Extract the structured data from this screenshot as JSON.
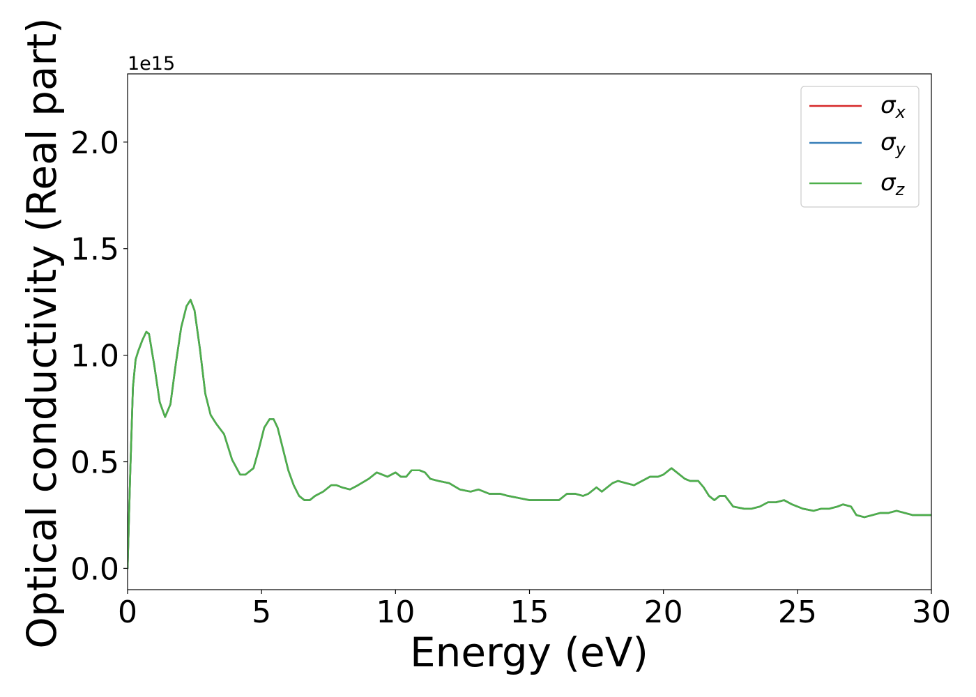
{
  "chart_data": {
    "type": "line",
    "title": "",
    "xlabel": "Energy (eV)",
    "ylabel": "Optical conductivity (Real part)",
    "y_offset_label": "1e15",
    "y_scale_factor": 1000000000000000.0,
    "xlim": [
      0,
      30
    ],
    "ylim": [
      -0.1,
      2.32
    ],
    "xticks": [
      0,
      5,
      10,
      15,
      20,
      25,
      30
    ],
    "xtick_labels": [
      "0",
      "5",
      "10",
      "15",
      "20",
      "25",
      "30"
    ],
    "yticks": [
      0.0,
      0.5,
      1.0,
      1.5,
      2.0
    ],
    "ytick_labels": [
      "0.0",
      "0.5",
      "1.0",
      "1.5",
      "2.0"
    ],
    "grid": false,
    "legend_position": "top-right",
    "series": [
      {
        "name": "σx",
        "symbol": "σ",
        "subscript": "x",
        "color": "#d62728",
        "x": [
          0,
          0.1,
          0.2,
          0.3,
          0.4,
          0.55,
          0.7,
          0.8,
          1.0,
          1.2,
          1.4,
          1.6,
          1.8,
          2.0,
          2.2,
          2.35,
          2.5,
          2.7,
          2.9,
          3.1,
          3.3,
          3.6,
          3.9,
          4.2,
          4.4,
          4.7,
          4.9,
          5.1,
          5.3,
          5.45,
          5.6,
          5.8,
          6.0,
          6.2,
          6.4,
          6.6,
          6.8,
          7.0,
          7.3,
          7.6,
          7.8,
          8.0,
          8.3,
          8.6,
          9.0,
          9.3,
          9.5,
          9.7,
          10.0,
          10.2,
          10.4,
          10.6,
          10.9,
          11.1,
          11.3,
          11.6,
          12.0,
          12.4,
          12.8,
          13.1,
          13.5,
          13.9,
          14.2,
          14.6,
          15.0,
          15.4,
          15.8,
          16.1,
          16.4,
          16.7,
          17.0,
          17.2,
          17.5,
          17.7,
          17.9,
          18.1,
          18.3,
          18.6,
          18.9,
          19.2,
          19.5,
          19.8,
          20.0,
          20.3,
          20.5,
          20.8,
          21.0,
          21.3,
          21.5,
          21.7,
          21.9,
          22.1,
          22.3,
          22.6,
          23.0,
          23.3,
          23.6,
          23.9,
          24.2,
          24.5,
          24.8,
          25.2,
          25.6,
          25.9,
          26.2,
          26.5,
          26.7,
          27.0,
          27.2,
          27.5,
          27.8,
          28.1,
          28.4,
          28.7,
          29.0,
          29.3,
          29.6,
          30.0
        ],
        "y": [
          0.0,
          0.45,
          0.85,
          0.98,
          1.02,
          1.07,
          1.11,
          1.1,
          0.95,
          0.78,
          0.71,
          0.77,
          0.96,
          1.13,
          1.23,
          1.26,
          1.21,
          1.03,
          0.82,
          0.72,
          0.68,
          0.63,
          0.51,
          0.44,
          0.44,
          0.47,
          0.56,
          0.66,
          0.7,
          0.7,
          0.66,
          0.56,
          0.46,
          0.39,
          0.34,
          0.32,
          0.32,
          0.34,
          0.36,
          0.39,
          0.39,
          0.38,
          0.37,
          0.39,
          0.42,
          0.45,
          0.44,
          0.43,
          0.45,
          0.43,
          0.43,
          0.46,
          0.46,
          0.45,
          0.42,
          0.41,
          0.4,
          0.37,
          0.36,
          0.37,
          0.35,
          0.35,
          0.34,
          0.33,
          0.32,
          0.32,
          0.32,
          0.32,
          0.35,
          0.35,
          0.34,
          0.35,
          0.38,
          0.36,
          0.38,
          0.4,
          0.41,
          0.4,
          0.39,
          0.41,
          0.43,
          0.43,
          0.44,
          0.47,
          0.45,
          0.42,
          0.41,
          0.41,
          0.38,
          0.34,
          0.32,
          0.34,
          0.34,
          0.29,
          0.28,
          0.28,
          0.29,
          0.31,
          0.31,
          0.32,
          0.3,
          0.28,
          0.27,
          0.28,
          0.28,
          0.29,
          0.3,
          0.29,
          0.25,
          0.24,
          0.25,
          0.26,
          0.26,
          0.27,
          0.26,
          0.25,
          0.25,
          0.25
        ]
      },
      {
        "name": "σy",
        "symbol": "σ",
        "subscript": "y",
        "color": "#377eb8",
        "x": [
          0,
          0.1,
          0.2,
          0.3,
          0.4,
          0.55,
          0.7,
          0.8,
          1.0,
          1.2,
          1.4,
          1.6,
          1.8,
          2.0,
          2.2,
          2.35,
          2.5,
          2.7,
          2.9,
          3.1,
          3.3,
          3.6,
          3.9,
          4.2,
          4.4,
          4.7,
          4.9,
          5.1,
          5.3,
          5.45,
          5.6,
          5.8,
          6.0,
          6.2,
          6.4,
          6.6,
          6.8,
          7.0,
          7.3,
          7.6,
          7.8,
          8.0,
          8.3,
          8.6,
          9.0,
          9.3,
          9.5,
          9.7,
          10.0,
          10.2,
          10.4,
          10.6,
          10.9,
          11.1,
          11.3,
          11.6,
          12.0,
          12.4,
          12.8,
          13.1,
          13.5,
          13.9,
          14.2,
          14.6,
          15.0,
          15.4,
          15.8,
          16.1,
          16.4,
          16.7,
          17.0,
          17.2,
          17.5,
          17.7,
          17.9,
          18.1,
          18.3,
          18.6,
          18.9,
          19.2,
          19.5,
          19.8,
          20.0,
          20.3,
          20.5,
          20.8,
          21.0,
          21.3,
          21.5,
          21.7,
          21.9,
          22.1,
          22.3,
          22.6,
          23.0,
          23.3,
          23.6,
          23.9,
          24.2,
          24.5,
          24.8,
          25.2,
          25.6,
          25.9,
          26.2,
          26.5,
          26.7,
          27.0,
          27.2,
          27.5,
          27.8,
          28.1,
          28.4,
          28.7,
          29.0,
          29.3,
          29.6,
          30.0
        ],
        "y": [
          0.0,
          0.45,
          0.85,
          0.98,
          1.02,
          1.07,
          1.11,
          1.1,
          0.95,
          0.78,
          0.71,
          0.77,
          0.96,
          1.13,
          1.23,
          1.26,
          1.21,
          1.03,
          0.82,
          0.72,
          0.68,
          0.63,
          0.51,
          0.44,
          0.44,
          0.47,
          0.56,
          0.66,
          0.7,
          0.7,
          0.66,
          0.56,
          0.46,
          0.39,
          0.34,
          0.32,
          0.32,
          0.34,
          0.36,
          0.39,
          0.39,
          0.38,
          0.37,
          0.39,
          0.42,
          0.45,
          0.44,
          0.43,
          0.45,
          0.43,
          0.43,
          0.46,
          0.46,
          0.45,
          0.42,
          0.41,
          0.4,
          0.37,
          0.36,
          0.37,
          0.35,
          0.35,
          0.34,
          0.33,
          0.32,
          0.32,
          0.32,
          0.32,
          0.35,
          0.35,
          0.34,
          0.35,
          0.38,
          0.36,
          0.38,
          0.4,
          0.41,
          0.4,
          0.39,
          0.41,
          0.43,
          0.43,
          0.44,
          0.47,
          0.45,
          0.42,
          0.41,
          0.41,
          0.38,
          0.34,
          0.32,
          0.34,
          0.34,
          0.29,
          0.28,
          0.28,
          0.29,
          0.31,
          0.31,
          0.32,
          0.3,
          0.28,
          0.27,
          0.28,
          0.28,
          0.29,
          0.3,
          0.29,
          0.25,
          0.24,
          0.25,
          0.26,
          0.26,
          0.27,
          0.26,
          0.25,
          0.25,
          0.25
        ]
      },
      {
        "name": "σz",
        "symbol": "σ",
        "subscript": "z",
        "color": "#4daf4a",
        "x": [
          0,
          0.1,
          0.2,
          0.3,
          0.4,
          0.55,
          0.7,
          0.8,
          1.0,
          1.2,
          1.4,
          1.6,
          1.8,
          2.0,
          2.2,
          2.35,
          2.5,
          2.7,
          2.9,
          3.1,
          3.3,
          3.6,
          3.9,
          4.2,
          4.4,
          4.7,
          4.9,
          5.1,
          5.3,
          5.45,
          5.6,
          5.8,
          6.0,
          6.2,
          6.4,
          6.6,
          6.8,
          7.0,
          7.3,
          7.6,
          7.8,
          8.0,
          8.3,
          8.6,
          9.0,
          9.3,
          9.5,
          9.7,
          10.0,
          10.2,
          10.4,
          10.6,
          10.9,
          11.1,
          11.3,
          11.6,
          12.0,
          12.4,
          12.8,
          13.1,
          13.5,
          13.9,
          14.2,
          14.6,
          15.0,
          15.4,
          15.8,
          16.1,
          16.4,
          16.7,
          17.0,
          17.2,
          17.5,
          17.7,
          17.9,
          18.1,
          18.3,
          18.6,
          18.9,
          19.2,
          19.5,
          19.8,
          20.0,
          20.3,
          20.5,
          20.8,
          21.0,
          21.3,
          21.5,
          21.7,
          21.9,
          22.1,
          22.3,
          22.6,
          23.0,
          23.3,
          23.6,
          23.9,
          24.2,
          24.5,
          24.8,
          25.2,
          25.6,
          25.9,
          26.2,
          26.5,
          26.7,
          27.0,
          27.2,
          27.5,
          27.8,
          28.1,
          28.4,
          28.7,
          29.0,
          29.3,
          29.6,
          30.0
        ],
        "y": [
          0.0,
          0.45,
          0.85,
          0.98,
          1.02,
          1.07,
          1.11,
          1.1,
          0.95,
          0.78,
          0.71,
          0.77,
          0.96,
          1.13,
          1.23,
          1.26,
          1.21,
          1.03,
          0.82,
          0.72,
          0.68,
          0.63,
          0.51,
          0.44,
          0.44,
          0.47,
          0.56,
          0.66,
          0.7,
          0.7,
          0.66,
          0.56,
          0.46,
          0.39,
          0.34,
          0.32,
          0.32,
          0.34,
          0.36,
          0.39,
          0.39,
          0.38,
          0.37,
          0.39,
          0.42,
          0.45,
          0.44,
          0.43,
          0.45,
          0.43,
          0.43,
          0.46,
          0.46,
          0.45,
          0.42,
          0.41,
          0.4,
          0.37,
          0.36,
          0.37,
          0.35,
          0.35,
          0.34,
          0.33,
          0.32,
          0.32,
          0.32,
          0.32,
          0.35,
          0.35,
          0.34,
          0.35,
          0.38,
          0.36,
          0.38,
          0.4,
          0.41,
          0.4,
          0.39,
          0.41,
          0.43,
          0.43,
          0.44,
          0.47,
          0.45,
          0.42,
          0.41,
          0.41,
          0.38,
          0.34,
          0.32,
          0.34,
          0.34,
          0.29,
          0.28,
          0.28,
          0.29,
          0.31,
          0.31,
          0.32,
          0.3,
          0.28,
          0.27,
          0.28,
          0.28,
          0.29,
          0.3,
          0.29,
          0.25,
          0.24,
          0.25,
          0.26,
          0.26,
          0.27,
          0.26,
          0.25,
          0.25,
          0.25
        ]
      }
    ]
  }
}
